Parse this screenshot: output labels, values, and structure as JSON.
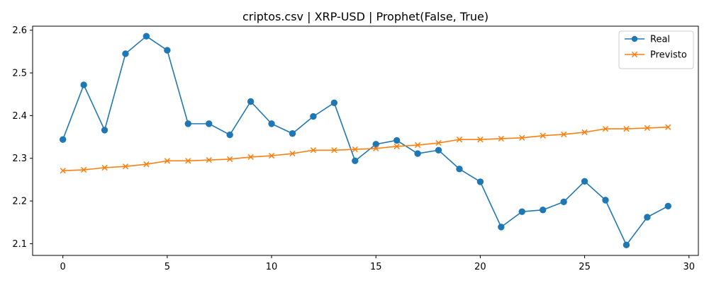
{
  "chart_data": {
    "type": "line",
    "title": "criptos.csv | XRP-USD | Prophet(False, True)",
    "xlabel": "",
    "ylabel": "",
    "xlim": [
      -1.45,
      30.45
    ],
    "ylim": [
      2.0725,
      2.6095
    ],
    "x_ticks": [
      0,
      5,
      10,
      15,
      20,
      25,
      30
    ],
    "y_ticks": [
      2.1,
      2.2,
      2.3,
      2.4,
      2.5,
      2.6
    ],
    "x_tick_labels": [
      "0",
      "5",
      "10",
      "15",
      "20",
      "25",
      "30"
    ],
    "y_tick_labels": [
      "2.1",
      "2.2",
      "2.3",
      "2.4",
      "2.5",
      "2.6"
    ],
    "grid": false,
    "legend_position": "top-right",
    "x": [
      0,
      1,
      2,
      3,
      4,
      5,
      6,
      7,
      8,
      9,
      10,
      11,
      12,
      13,
      14,
      15,
      16,
      17,
      18,
      19,
      20,
      21,
      22,
      23,
      24,
      25,
      26,
      27,
      28,
      29
    ],
    "series": [
      {
        "name": "Real",
        "color": "#1f77b4",
        "marker": "circle",
        "values": [
          2.344,
          2.472,
          2.366,
          2.545,
          2.586,
          2.553,
          2.381,
          2.381,
          2.355,
          2.433,
          2.381,
          2.358,
          2.398,
          2.43,
          2.294,
          2.333,
          2.342,
          2.311,
          2.319,
          2.275,
          2.245,
          2.139,
          2.175,
          2.179,
          2.198,
          2.246,
          2.202,
          2.097,
          2.162,
          2.188
        ]
      },
      {
        "name": "Previsto",
        "color": "#ff7f0e",
        "marker": "x",
        "values": [
          2.271,
          2.273,
          2.278,
          2.281,
          2.286,
          2.294,
          2.294,
          2.296,
          2.298,
          2.303,
          2.306,
          2.311,
          2.319,
          2.319,
          2.321,
          2.323,
          2.328,
          2.331,
          2.336,
          2.344,
          2.344,
          2.346,
          2.348,
          2.353,
          2.356,
          2.361,
          2.369,
          2.369,
          2.371,
          2.373
        ]
      }
    ]
  }
}
